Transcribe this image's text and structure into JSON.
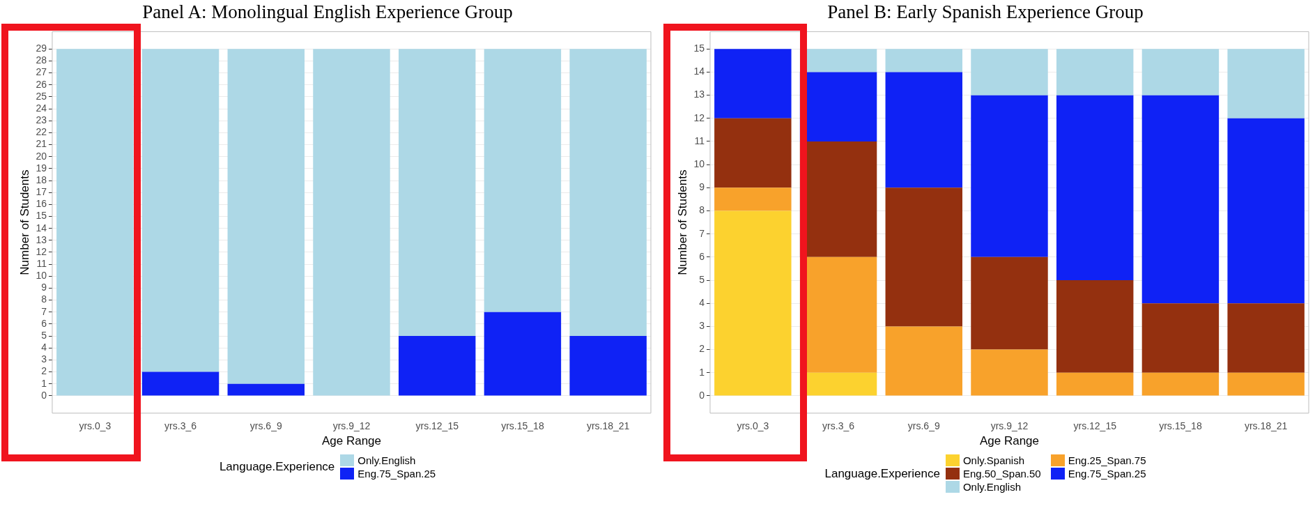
{
  "chart_data": [
    {
      "type": "bar",
      "title": "Panel A: Monolingual English Experience Group",
      "xlabel": "Age Range",
      "ylabel": "Number of Students",
      "legend_title": "Language.Experience",
      "categories": [
        "yrs.0_3",
        "yrs.3_6",
        "yrs.6_9",
        "yrs.9_12",
        "yrs.12_15",
        "yrs.15_18",
        "yrs.18_21"
      ],
      "stacked": true,
      "series": [
        {
          "name": "Eng.75_Span.25",
          "color": "#0f22f5",
          "values": [
            0,
            2,
            1,
            0,
            5,
            7,
            5
          ]
        },
        {
          "name": "Only.English",
          "color": "#add8e6",
          "values": [
            29,
            27,
            28,
            29,
            24,
            22,
            24
          ]
        }
      ],
      "ylim": [
        -1.45,
        30.45
      ],
      "yticks": [
        0,
        1,
        2,
        3,
        4,
        5,
        6,
        7,
        8,
        9,
        10,
        11,
        12,
        13,
        14,
        15,
        16,
        17,
        18,
        19,
        20,
        21,
        22,
        23,
        24,
        25,
        26,
        27,
        28,
        29
      ],
      "grid": "y",
      "legend": "bottom"
    },
    {
      "type": "bar",
      "title": "Panel B: Early Spanish Experience Group",
      "xlabel": "Age Range",
      "ylabel": "Number of Students",
      "legend_title": "Language.Experience",
      "categories": [
        "yrs.0_3",
        "yrs.3_6",
        "yrs.6_9",
        "yrs.9_12",
        "yrs.12_15",
        "yrs.15_18",
        "yrs.18_21"
      ],
      "stacked": true,
      "series": [
        {
          "name": "Only.Spanish",
          "color": "#fcd22f",
          "values": [
            8,
            1,
            0,
            0,
            0,
            0,
            0
          ]
        },
        {
          "name": "Eng.25_Span.75",
          "color": "#f8a22b",
          "values": [
            1,
            5,
            3,
            2,
            1,
            1,
            1
          ]
        },
        {
          "name": "Eng.50_Span.50",
          "color": "#94300f",
          "values": [
            3,
            5,
            6,
            4,
            4,
            3,
            3
          ]
        },
        {
          "name": "Eng.75_Span.25",
          "color": "#0f22f5",
          "values": [
            3,
            3,
            5,
            7,
            8,
            9,
            8
          ]
        },
        {
          "name": "Only.English",
          "color": "#add8e6",
          "values": [
            0,
            1,
            1,
            2,
            2,
            2,
            3
          ]
        }
      ],
      "ylim": [
        -0.75,
        15.75
      ],
      "yticks": [
        0,
        1,
        2,
        3,
        4,
        5,
        6,
        7,
        8,
        9,
        10,
        11,
        12,
        13,
        14,
        15
      ],
      "grid": "y",
      "legend": "bottom"
    }
  ]
}
